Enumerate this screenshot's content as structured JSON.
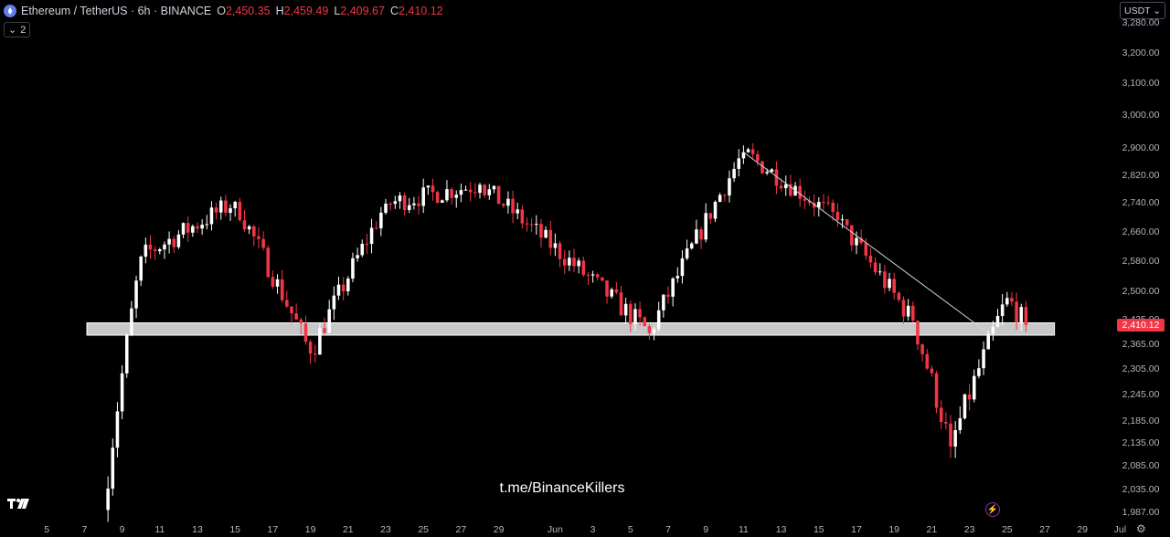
{
  "header": {
    "symbol": "Ethereum / TetherUS",
    "interval": "6h",
    "exchange": "BINANCE",
    "open_label": "O",
    "open": "2,450.35",
    "high_label": "H",
    "high": "2,459.49",
    "low_label": "L",
    "low": "2,409.67",
    "close_label": "C",
    "close": "2,410.12",
    "indicator_toggle": "2"
  },
  "currency_select": "USDT",
  "last_price_tag": "2,410.12",
  "watermark": "t.me/BinanceKillers",
  "colors": {
    "up": "#ffffff",
    "down": "#f23645",
    "background": "#000000",
    "zone": "#d9d9d9",
    "trendline": "#d1d4dc"
  },
  "icons": [
    "eth-logo-icon",
    "chevron-down-icon",
    "tradingview-logo-icon",
    "flash-icon",
    "gear-icon"
  ],
  "chart_data": {
    "type": "candlestick",
    "interval_hours": 6,
    "y_axis_ticks": [
      3280,
      3200,
      3100,
      3000,
      2900,
      2820,
      2740,
      2660,
      2580,
      2500,
      2425,
      2365,
      2305,
      2245,
      2185,
      2135,
      2085,
      2035,
      1987
    ],
    "y_axis_labels": [
      "3,280.00",
      "3,200.00",
      "3,100.00",
      "3,000.00",
      "2,900.00",
      "2,820.00",
      "2,740.00",
      "2,660.00",
      "2,580.00",
      "2,500.00",
      "2,425.00",
      "2,365.00",
      "2,305.00",
      "2,245.00",
      "2,185.00",
      "2,135.00",
      "2,085.00",
      "2,035.00",
      "1,987.00"
    ],
    "x_axis_labels": [
      "5",
      "7",
      "9",
      "11",
      "13",
      "15",
      "17",
      "19",
      "21",
      "23",
      "25",
      "27",
      "29",
      "Jun",
      "3",
      "5",
      "7",
      "9",
      "11",
      "13",
      "15",
      "17",
      "19",
      "21",
      "23",
      "25",
      "27",
      "29",
      "Jul",
      "3"
    ],
    "support_zone": {
      "low": 2385,
      "high": 2415,
      "from": "May 8",
      "to": "Jun 28"
    },
    "trendline": {
      "start": {
        "date": "Jun 11",
        "price": 2885
      },
      "end": {
        "date": "Jun 24",
        "price": 2390
      }
    },
    "key_points": [
      {
        "date": "May 8",
        "price": 1990,
        "note": "low"
      },
      {
        "date": "May 10",
        "price": 2590
      },
      {
        "date": "May 15",
        "price": 2740
      },
      {
        "date": "May 19",
        "price": 2340,
        "note": "wick low"
      },
      {
        "date": "May 23",
        "price": 2735
      },
      {
        "date": "May 28",
        "price": 2790
      },
      {
        "date": "Jun 6",
        "price": 2390
      },
      {
        "date": "Jun 11",
        "price": 2885,
        "note": "high"
      },
      {
        "date": "Jun 16",
        "price": 2690
      },
      {
        "date": "Jun 20",
        "price": 2420
      },
      {
        "date": "Jun 22",
        "price": 2125,
        "note": "low"
      },
      {
        "date": "Jun 25",
        "price": 2480
      },
      {
        "date": "Jun 26",
        "price": 2410
      }
    ]
  }
}
